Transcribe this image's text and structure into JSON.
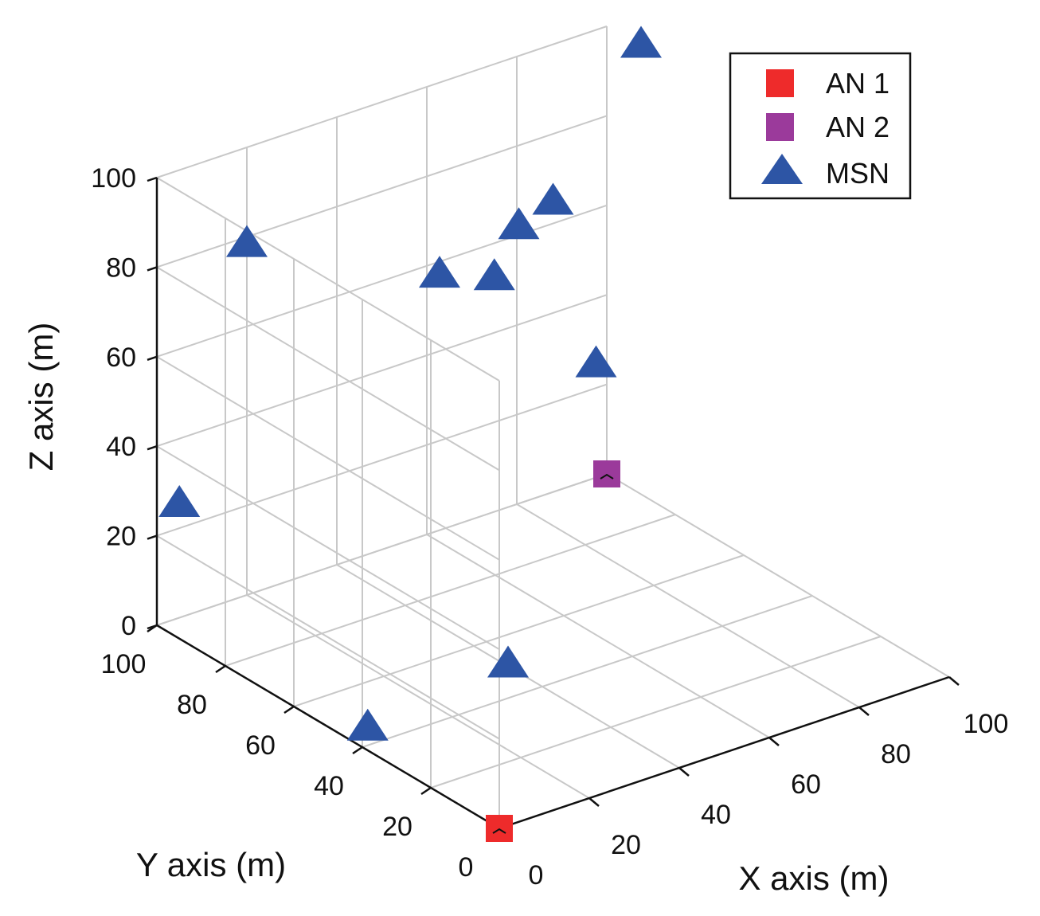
{
  "chart_data": {
    "type": "scatter3d",
    "xlabel": "X axis (m)",
    "ylabel": "Y axis (m)",
    "zlabel": "Z axis (m)",
    "xlim": [
      0,
      100
    ],
    "ylim": [
      0,
      100
    ],
    "zlim": [
      0,
      100
    ],
    "xticks": [
      "0",
      "20",
      "40",
      "60",
      "80",
      "100"
    ],
    "yticks": [
      "0",
      "20",
      "40",
      "60",
      "80",
      "100"
    ],
    "zticks": [
      "0",
      "20",
      "40",
      "60",
      "80",
      "100"
    ],
    "grid": true,
    "legend_position": "top-right",
    "series": [
      {
        "name": "AN 1",
        "marker": "square",
        "color": "#ee2b2b",
        "points": [
          {
            "x": 0,
            "y": 0,
            "z": 0
          }
        ]
      },
      {
        "name": "AN 2",
        "marker": "square",
        "color": "#9b3a9b",
        "points": [
          {
            "x": 100,
            "y": 100,
            "z": 0
          }
        ]
      },
      {
        "name": "MSN",
        "marker": "triangle",
        "color": "#2d55a5",
        "points": [
          {
            "x": 5,
            "y": 45,
            "z": 0
          },
          {
            "x": 90,
            "y": 90,
            "z": 32
          },
          {
            "x": 40,
            "y": 50,
            "z": 0
          },
          {
            "x": 75,
            "y": 100,
            "z": 52
          },
          {
            "x": 5,
            "y": 100,
            "z": 25
          },
          {
            "x": 20,
            "y": 100,
            "z": 78
          },
          {
            "x": 50,
            "y": 50,
            "z": 100
          },
          {
            "x": 40,
            "y": 70,
            "z": 78
          },
          {
            "x": 50,
            "y": 60,
            "z": 90
          },
          {
            "x": 100,
            "y": 90,
            "z": 100
          }
        ]
      }
    ]
  }
}
